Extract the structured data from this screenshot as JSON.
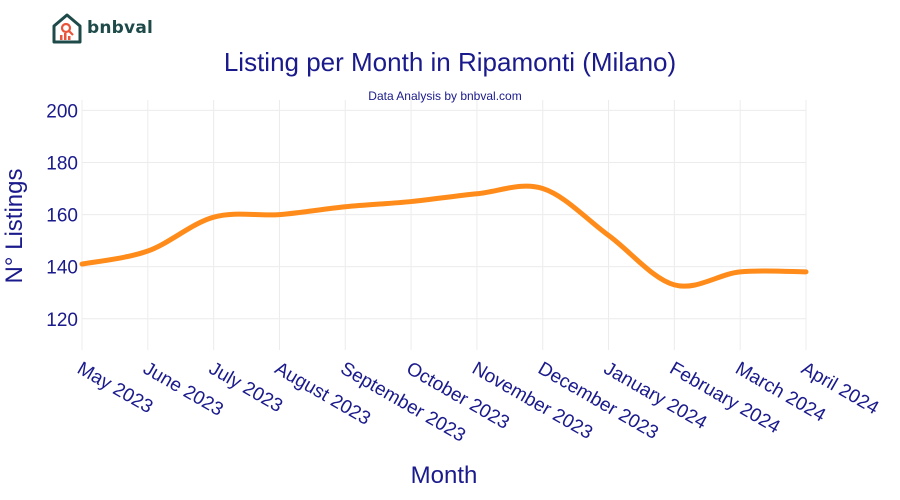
{
  "logo": {
    "text": "bnbval"
  },
  "chart_data": {
    "type": "line",
    "title": "Listing per Month in Ripamonti (Milano)",
    "subtitle": "Data Analysis by bnbval.com",
    "xlabel": "Month",
    "ylabel": "N° Listings",
    "categories": [
      "May 2023",
      "June 2023",
      "July 2023",
      "August 2023",
      "September 2023",
      "October 2023",
      "November 2023",
      "December 2023",
      "January 2024",
      "February 2024",
      "March 2024",
      "April 2024"
    ],
    "series": [
      {
        "values": [
          141,
          146,
          159,
          160,
          163,
          165,
          168,
          170,
          152,
          133,
          138,
          138
        ]
      }
    ],
    "yticks": [
      120,
      140,
      160,
      180,
      200
    ],
    "ylim": [
      108,
      204
    ],
    "grid": true,
    "color": "#ff8c1a"
  }
}
